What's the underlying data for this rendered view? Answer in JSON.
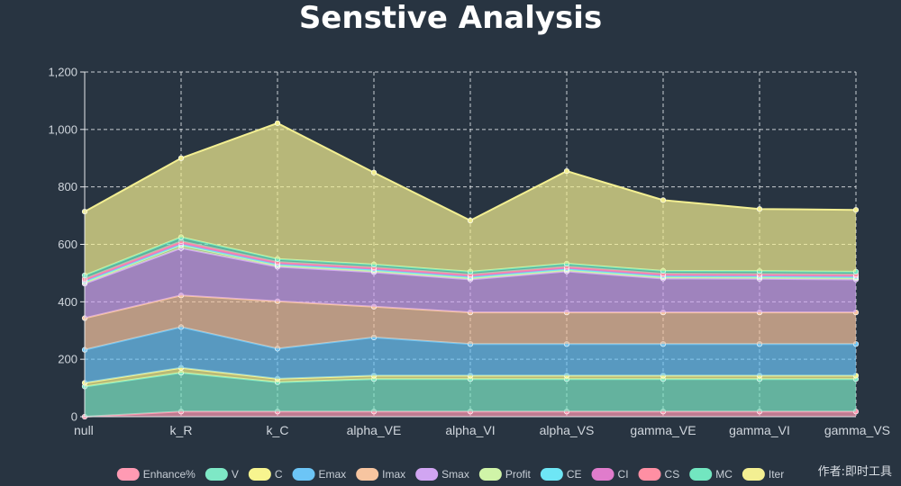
{
  "chart_data": {
    "type": "area",
    "stacked": true,
    "title": "Senstive Analysis",
    "xlabel": "",
    "ylabel": "",
    "ylim": [
      0,
      1200
    ],
    "y_ticks": [
      0,
      200,
      400,
      600,
      800,
      1000,
      1200
    ],
    "y_tick_labels": [
      "0",
      "200",
      "400",
      "600",
      "800",
      "1,000",
      "1,200"
    ],
    "grid": true,
    "legend_position": "bottom",
    "categories": [
      "null",
      "k_R",
      "k_C",
      "alpha_VE",
      "alpha_VI",
      "alpha_VS",
      "gamma_VE",
      "gamma_VI",
      "gamma_VS"
    ],
    "series": [
      {
        "name": "Enhance%",
        "color": "#ff9ab3",
        "values": [
          0,
          18,
          18,
          18,
          18,
          18,
          18,
          18,
          18
        ]
      },
      {
        "name": "V",
        "color": "#7ee8c6",
        "values": [
          105,
          135,
          102,
          113,
          113,
          113,
          113,
          113,
          113
        ]
      },
      {
        "name": "C",
        "color": "#f7f48f",
        "values": [
          13,
          17,
          12,
          12,
          12,
          12,
          12,
          12,
          12
        ]
      },
      {
        "name": "Emax",
        "color": "#6cc5f6",
        "values": [
          115,
          142,
          105,
          133,
          110,
          110,
          110,
          110,
          110
        ]
      },
      {
        "name": "Imax",
        "color": "#f7c5a0",
        "values": [
          110,
          110,
          165,
          107,
          110,
          110,
          110,
          110,
          110
        ]
      },
      {
        "name": "Smax",
        "color": "#d1a5f2",
        "values": [
          120,
          165,
          120,
          120,
          115,
          143,
          118,
          117,
          115
        ]
      },
      {
        "name": "Profit",
        "color": "#d0f4a8",
        "values": [
          5,
          10,
          5,
          5,
          5,
          5,
          5,
          5,
          5
        ]
      },
      {
        "name": "CE",
        "color": "#6ee6f5",
        "values": [
          4,
          4,
          4,
          4,
          4,
          4,
          4,
          4,
          4
        ]
      },
      {
        "name": "CI",
        "color": "#e07ccc",
        "values": [
          4,
          4,
          4,
          4,
          4,
          4,
          4,
          4,
          4
        ]
      },
      {
        "name": "CS",
        "color": "#ff8fa3",
        "values": [
          4,
          6,
          4,
          4,
          4,
          4,
          4,
          4,
          4
        ]
      },
      {
        "name": "MC",
        "color": "#72e6c0",
        "values": [
          12,
          14,
          10,
          10,
          10,
          10,
          10,
          10,
          10
        ]
      },
      {
        "name": "Iter",
        "color": "#f3ef92",
        "values": [
          222,
          275,
          473,
          320,
          178,
          322,
          246,
          216,
          215
        ]
      }
    ]
  },
  "author_note": "作者:即时工具"
}
